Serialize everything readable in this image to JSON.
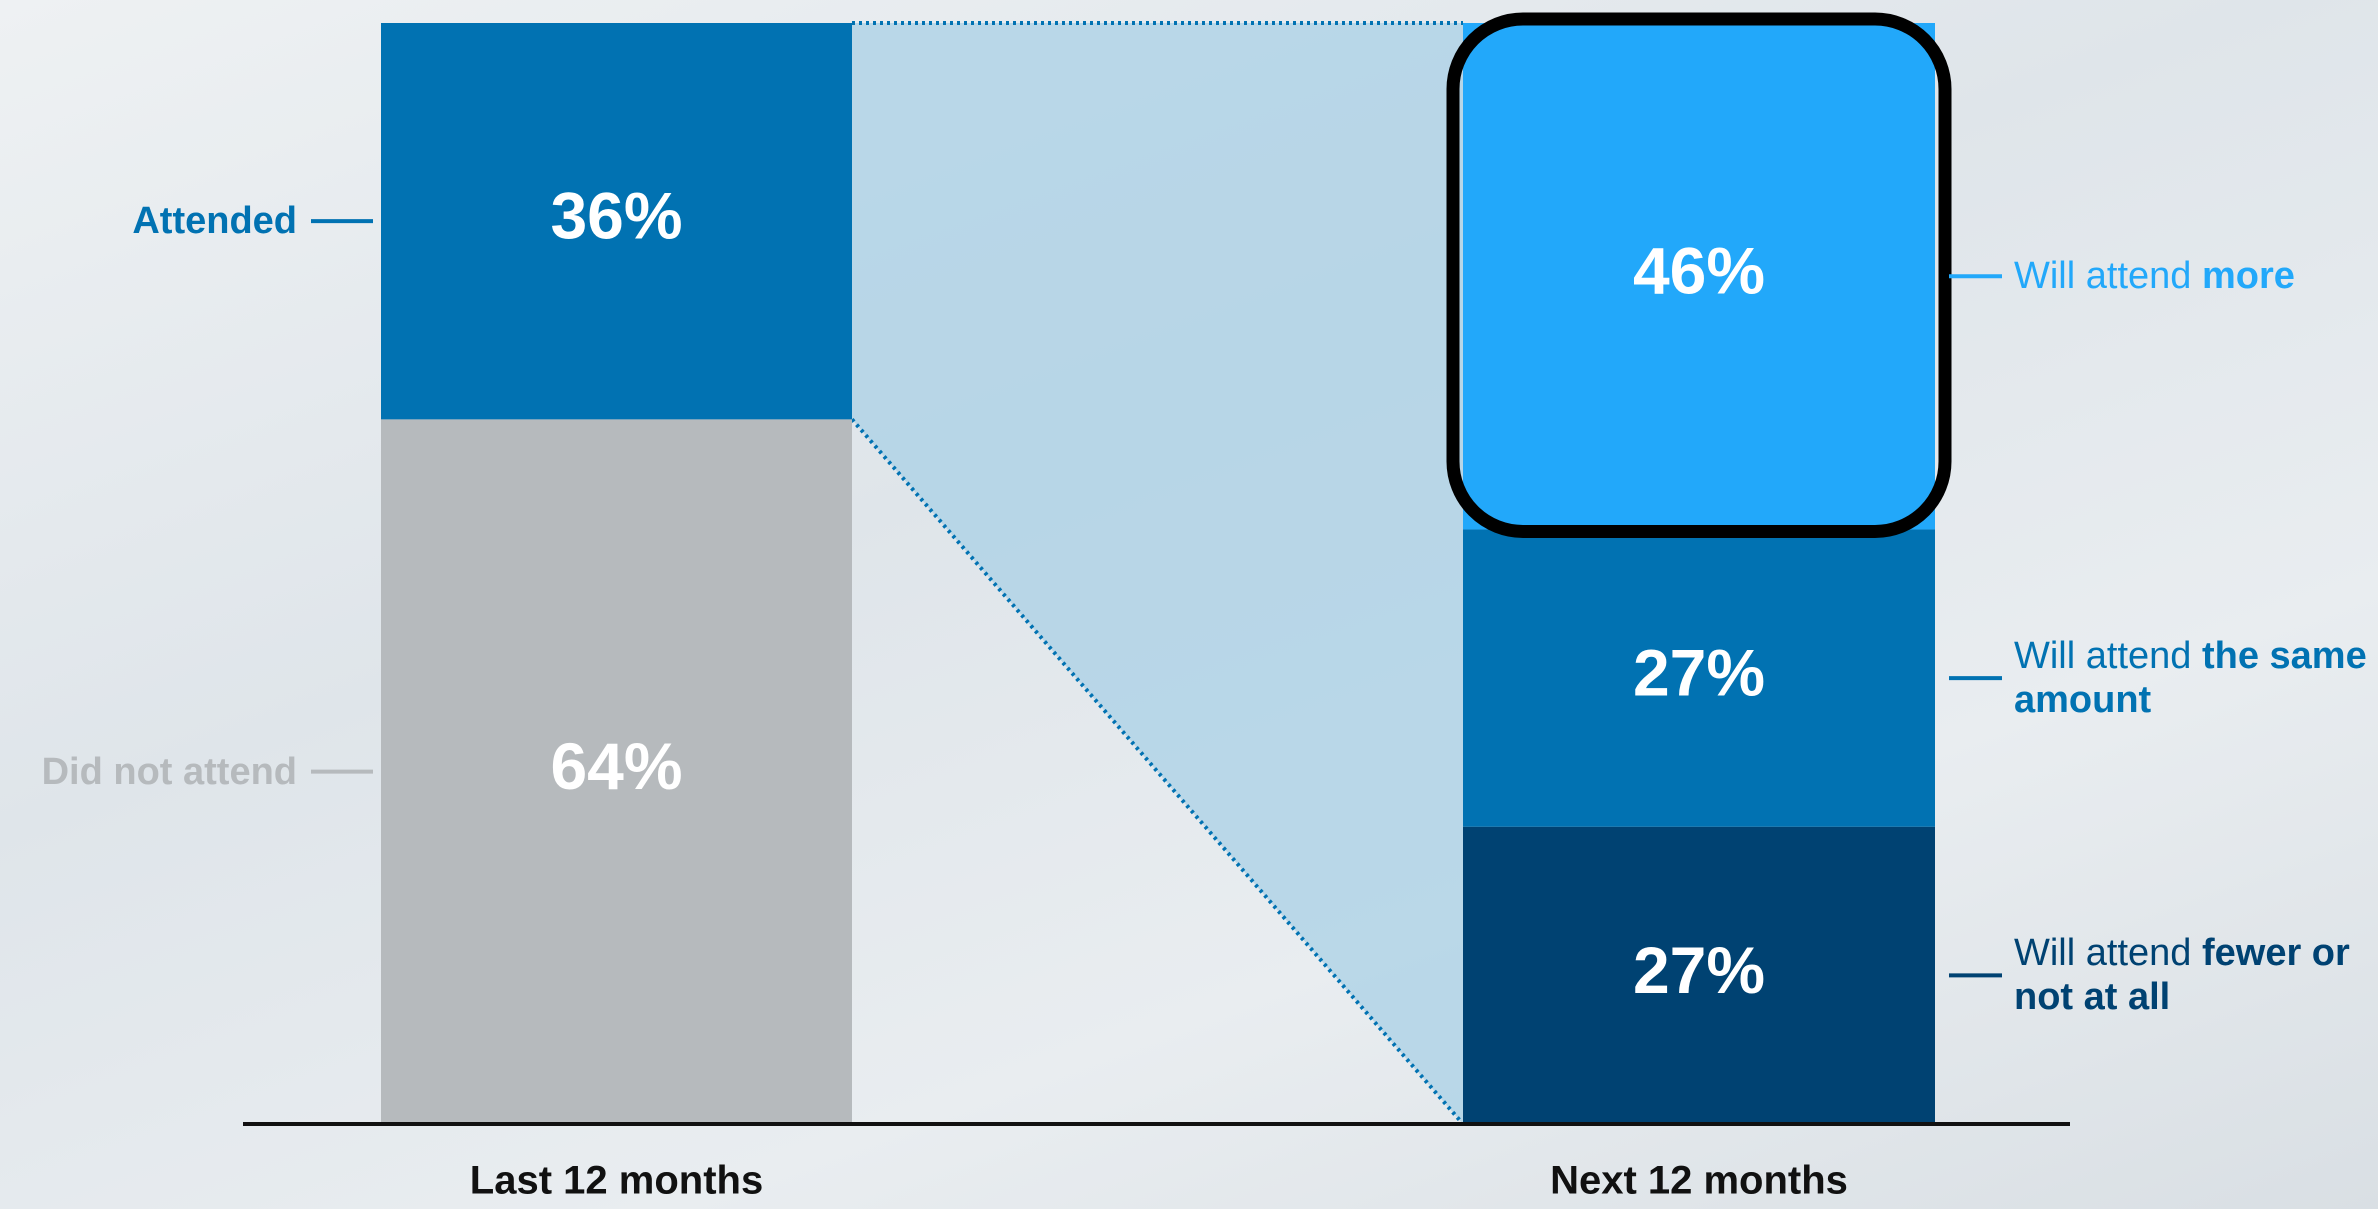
{
  "chart_data": {
    "type": "stacked-bar",
    "ylim": [
      0,
      100
    ],
    "bars": [
      {
        "category": "Last 12 months",
        "segments": [
          {
            "name": "Did not attend",
            "value": 64,
            "value_label": "64%",
            "color": "#b6babd"
          },
          {
            "name": "Attended",
            "value": 36,
            "value_label": "36%",
            "color": "#0172b2"
          }
        ]
      },
      {
        "category": "Next 12 months",
        "segments": [
          {
            "name": "Will attend",
            "name_emphasis": "fewer or not at all",
            "value": 27,
            "value_label": "27%",
            "color": "#004272"
          },
          {
            "name": "Will attend",
            "name_emphasis": "the same amount",
            "value": 27,
            "value_label": "27%",
            "color": "#0172b2"
          },
          {
            "name": "Will attend",
            "name_emphasis": "more",
            "value": 46,
            "value_label": "46%",
            "color": "#22a8fa"
          }
        ]
      }
    ]
  }
}
